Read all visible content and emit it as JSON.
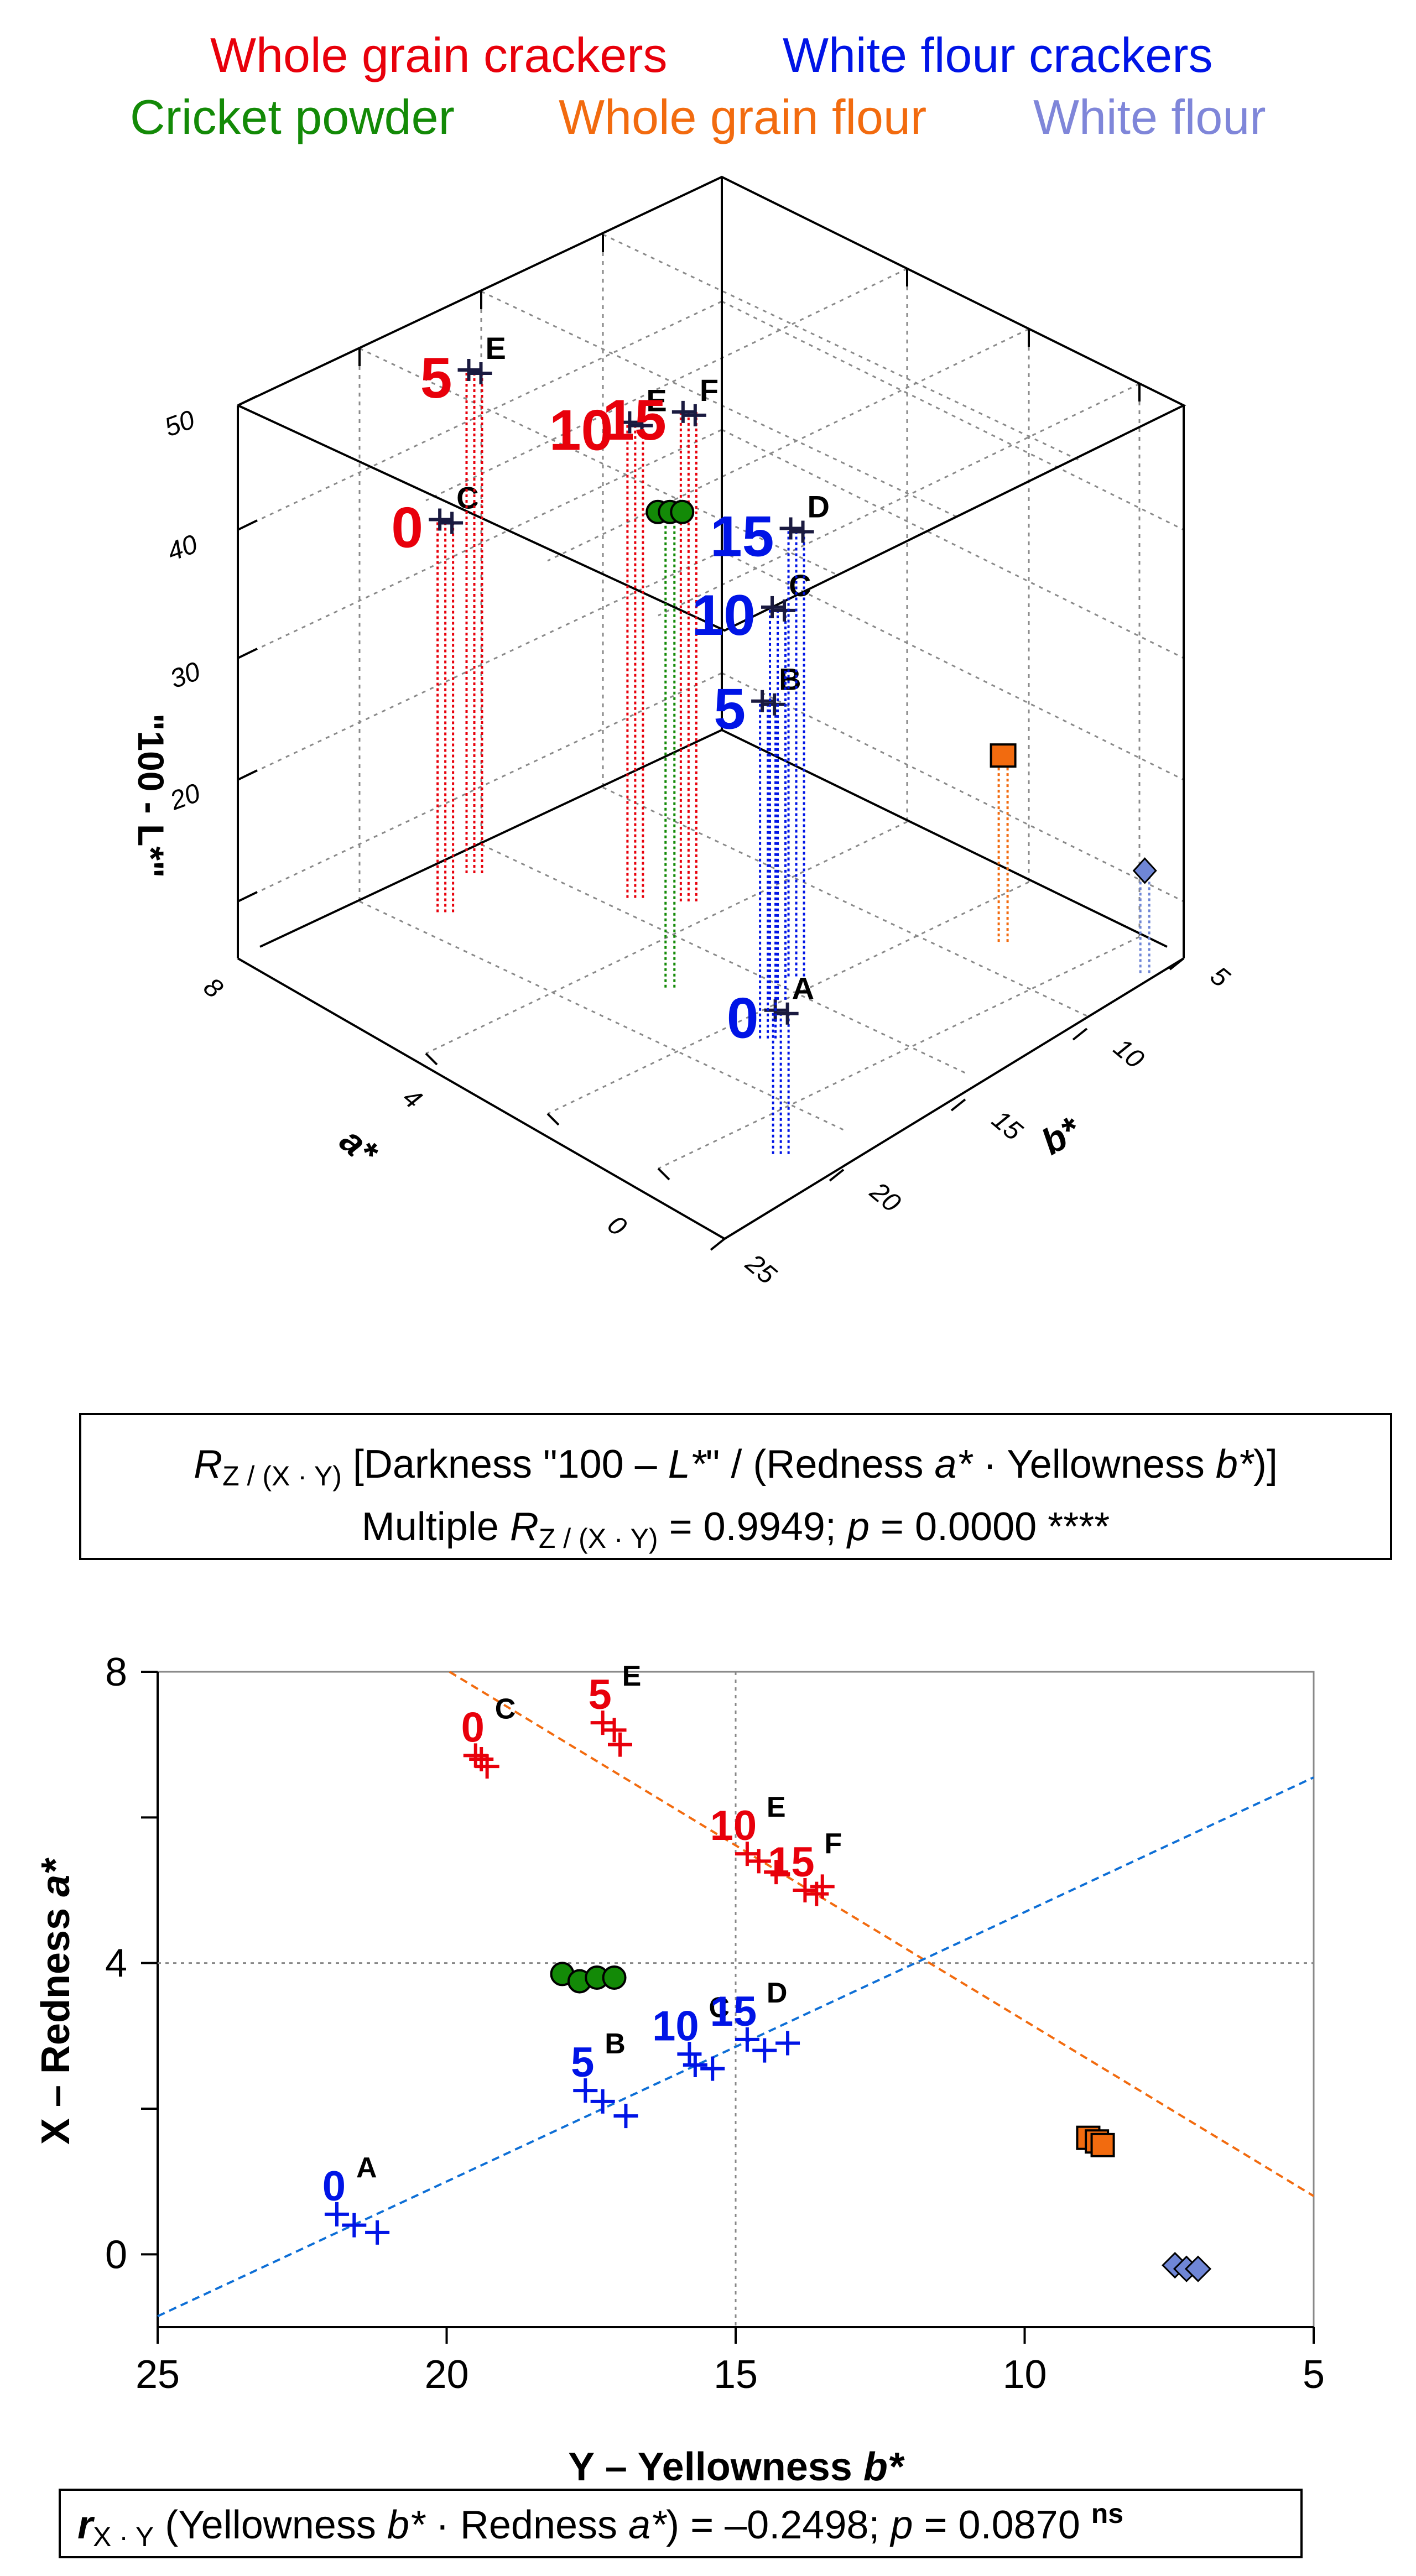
{
  "legend": [
    {
      "label": "Whole grain crackers",
      "color": "#e8000b"
    },
    {
      "label": "White flour crackers",
      "color": "#0014e6"
    },
    {
      "label": "Cricket powder",
      "color": "#138a07"
    },
    {
      "label": "Whole grain flour",
      "color": "#f26b0f"
    },
    {
      "label": "White flour",
      "color": "#7f86d9"
    }
  ],
  "chart_data": [
    {
      "type": "scatter3d",
      "axes": {
        "z": {
          "label": "\"100 - L*\"",
          "ticks": [
            "50",
            "40",
            "30",
            "20"
          ],
          "range": [
            10,
            50
          ]
        },
        "a": {
          "label": "a*",
          "ticks": [
            "8",
            "4",
            "0"
          ],
          "range": [
            0,
            8
          ]
        },
        "b": {
          "label": "b*",
          "ticks": [
            "5",
            "10",
            "15",
            "20",
            "25"
          ],
          "range": [
            5,
            25
          ]
        }
      },
      "series": [
        {
          "name": "Whole grain crackers",
          "color": "#e8000b",
          "points": [
            {
              "level": "0",
              "group": "C",
              "b": 19.4,
              "a": 6.8,
              "darkness": 40
            },
            {
              "level": "5",
              "group": "E",
              "b": 17.2,
              "a": 7.2,
              "darkness": 48
            },
            {
              "level": "10",
              "group": "E",
              "b": 14.7,
              "a": 5.5,
              "darkness": 46
            },
            {
              "level": "15",
              "group": "F",
              "b": 13.7,
              "a": 5.0,
              "darkness": 47
            }
          ]
        },
        {
          "name": "White flour crackers",
          "color": "#0014e6",
          "points": [
            {
              "level": "0",
              "group": "A",
              "b": 21.5,
              "a": 0.4,
              "darkness": 22
            },
            {
              "level": "5",
              "group": "B",
              "b": 17.4,
              "a": 2.2,
              "darkness": 36
            },
            {
              "level": "10",
              "group": "C",
              "b": 15.7,
              "a": 2.7,
              "darkness": 40
            },
            {
              "level": "15",
              "group": "D",
              "b": 14.4,
              "a": 2.9,
              "darkness": 44
            }
          ]
        },
        {
          "name": "Cricket powder",
          "color": "#138a07",
          "points": [
            {
              "b": 17.5,
              "a": 3.8,
              "darkness": 46
            }
          ]
        },
        {
          "name": "Whole grain flour",
          "color": "#f26b0f",
          "points": [
            {
              "b": 8.8,
              "a": 1.6,
              "darkness": 25
            }
          ]
        },
        {
          "name": "White flour",
          "color": "#6f86d6",
          "points": [
            {
              "b": 7.2,
              "a": -0.2,
              "darkness": 19
            }
          ]
        }
      ]
    },
    {
      "type": "scatter",
      "xlabel": "Y – Yellowness b*",
      "ylabel": "X – Redness a*",
      "xlim": [
        25,
        5
      ],
      "ylim": [
        -1,
        8
      ],
      "xticks": [
        "25",
        "20",
        "15",
        "10",
        "5"
      ],
      "yticks": [
        "8",
        "4",
        "0"
      ],
      "series": [
        {
          "name": "Whole grain crackers",
          "marker": "+",
          "color": "#e8000b",
          "groups": [
            {
              "level": "0",
              "letter": "C",
              "points": [
                [
                  19.5,
                  6.85
                ],
                [
                  19.3,
                  6.7
                ],
                [
                  19.4,
                  6.8
                ]
              ]
            },
            {
              "level": "5",
              "letter": "E",
              "points": [
                [
                  17.3,
                  7.3
                ],
                [
                  17.1,
                  7.2
                ],
                [
                  17.0,
                  7.0
                ]
              ]
            },
            {
              "level": "10",
              "letter": "E",
              "points": [
                [
                  14.8,
                  5.5
                ],
                [
                  14.6,
                  5.4
                ],
                [
                  14.3,
                  5.25
                ]
              ]
            },
            {
              "level": "15",
              "letter": "F",
              "points": [
                [
                  13.8,
                  5.0
                ],
                [
                  13.6,
                  4.95
                ],
                [
                  13.5,
                  5.05
                ]
              ]
            }
          ]
        },
        {
          "name": "White flour crackers",
          "marker": "+",
          "color": "#0014e6",
          "groups": [
            {
              "level": "0",
              "letter": "A",
              "points": [
                [
                  21.9,
                  0.55
                ],
                [
                  21.6,
                  0.4
                ],
                [
                  21.2,
                  0.3
                ]
              ]
            },
            {
              "level": "5",
              "letter": "B",
              "points": [
                [
                  17.6,
                  2.25
                ],
                [
                  17.3,
                  2.1
                ],
                [
                  16.9,
                  1.9
                ]
              ]
            },
            {
              "level": "10",
              "letter": "C",
              "points": [
                [
                  15.8,
                  2.75
                ],
                [
                  15.7,
                  2.6
                ],
                [
                  15.4,
                  2.55
                ]
              ]
            },
            {
              "level": "15",
              "letter": "D",
              "points": [
                [
                  14.8,
                  2.95
                ],
                [
                  14.5,
                  2.8
                ],
                [
                  14.1,
                  2.9
                ]
              ]
            }
          ]
        },
        {
          "name": "Cricket powder",
          "marker": "circle",
          "color": "#138a07",
          "points": [
            [
              18.0,
              3.85
            ],
            [
              17.7,
              3.75
            ],
            [
              17.4,
              3.8
            ],
            [
              17.1,
              3.8
            ]
          ]
        },
        {
          "name": "Whole grain flour",
          "marker": "square",
          "color": "#f26b0f",
          "points": [
            [
              8.9,
              1.6
            ],
            [
              8.75,
              1.55
            ],
            [
              8.65,
              1.5
            ]
          ]
        },
        {
          "name": "White flour",
          "marker": "diamond",
          "color": "#6f86d6",
          "points": [
            [
              7.4,
              -0.15
            ],
            [
              7.2,
              -0.2
            ],
            [
              7.0,
              -0.2
            ]
          ]
        }
      ],
      "fit_lines": [
        {
          "color": "#f26b0f",
          "from": [
            19.95,
            8.0
          ],
          "to": [
            5.0,
            0.8
          ]
        },
        {
          "color": "#0e6fd6",
          "from": [
            25.0,
            -0.85
          ],
          "to": [
            5.0,
            6.55
          ]
        }
      ],
      "reference_lines": {
        "x": 15,
        "y": 4
      }
    }
  ],
  "stats_box_1": {
    "r": "R",
    "sub": "Z / (X · Y)",
    "text_a": " [Darkness \"100 – ",
    "l_star": "L*",
    "text_b": "\" / (Redness ",
    "a_star": "a*",
    "text_c": " · Yellowness ",
    "b_star": "b*",
    "text_d": ")]",
    "line2_a": "Multiple ",
    "line2_b": " = 0.9949; ",
    "p": "p",
    "line2_c": " = 0.0000 ****"
  },
  "stats_box_2": {
    "r": "r",
    "sub": "X · Y",
    "text_a": " (Yellowness ",
    "b_star": "b*",
    "text_b": " · Redness ",
    "a_star": "a*",
    "text_c": ") = –0.2498; ",
    "p": "p",
    "text_d": " = 0.0870 ",
    "ns": "ns"
  },
  "colors": {
    "axis": "#000000",
    "grid": "#8a8a8a",
    "orange_fit": "#f26b0f",
    "blue_fit": "#0e6fd6"
  }
}
